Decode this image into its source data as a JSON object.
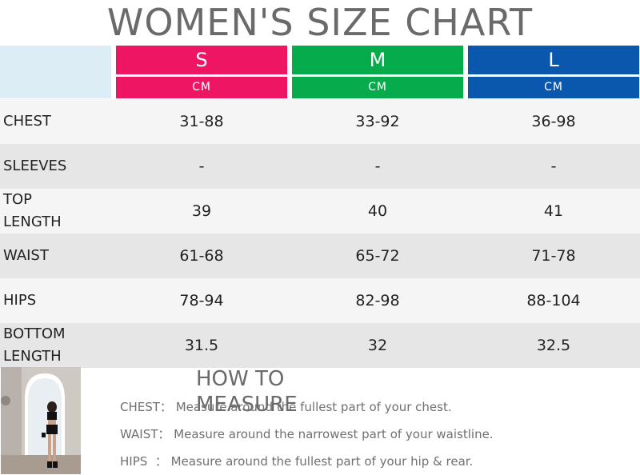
{
  "title": "WOMEN'S SIZE CHART",
  "sizes": [
    {
      "label": "S",
      "unit": "CM",
      "color": "#ee1663"
    },
    {
      "label": "M",
      "unit": "CM",
      "color": "#06ab4c"
    },
    {
      "label": "L",
      "unit": "CM",
      "color": "#0a58ad"
    }
  ],
  "rows": [
    {
      "label": "CHEST",
      "values": [
        "31-88",
        "33-92",
        "36-98"
      ]
    },
    {
      "label": "SLEEVES",
      "values": [
        "-",
        "-",
        "-"
      ]
    },
    {
      "label": "TOP\nLENGTH",
      "values": [
        "39",
        "40",
        "41"
      ]
    },
    {
      "label": "WAIST",
      "values": [
        "61-68",
        "65-72",
        "71-78"
      ]
    },
    {
      "label": "HIPS",
      "values": [
        "78-94",
        "82-98",
        "88-104"
      ]
    },
    {
      "label": "BOTTOM\nLENGTH",
      "values": [
        "31.5",
        "32",
        "32.5"
      ]
    }
  ],
  "how_to_measure": {
    "title": "HOW TO MEASURE",
    "items": [
      {
        "key": "CHEST：",
        "text": "Measure around the fullest part of your chest."
      },
      {
        "key": "WAIST：",
        "text": "Measure around the narrowest part of your waistline."
      },
      {
        "key": "HIPS  ：",
        "text": "Measure around the fullest part of your hip & rear."
      }
    ]
  }
}
